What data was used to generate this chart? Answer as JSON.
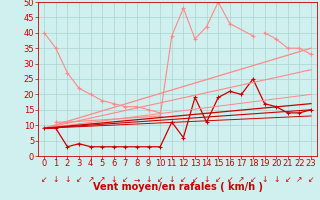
{
  "bg_color": "#cff0ee",
  "grid_color": "#aad4d0",
  "xlabel": "Vent moyen/en rafales ( km/h )",
  "xlabel_color": "#cc0000",
  "xlabel_fontsize": 7,
  "tick_color": "#cc0000",
  "tick_fontsize": 6,
  "xlim": [
    -0.5,
    23.5
  ],
  "ylim": [
    0,
    50
  ],
  "yticks": [
    0,
    5,
    10,
    15,
    20,
    25,
    30,
    35,
    40,
    45,
    50
  ],
  "xticks": [
    0,
    1,
    2,
    3,
    4,
    5,
    6,
    7,
    8,
    9,
    10,
    11,
    12,
    13,
    14,
    15,
    16,
    17,
    18,
    19,
    20,
    21,
    22,
    23
  ],
  "series": [
    {
      "x": [
        0,
        1,
        2,
        3,
        4,
        5,
        6,
        7,
        8,
        9,
        10
      ],
      "y": [
        40,
        35,
        27,
        22,
        20,
        18,
        17,
        16,
        16,
        15,
        14
      ],
      "color": "#ff8888",
      "marker": "+",
      "markersize": 3,
      "linewidth": 0.8
    },
    {
      "x": [
        1,
        2,
        10,
        11,
        12,
        13,
        14,
        15,
        16,
        18
      ],
      "y": [
        11,
        11,
        13,
        39,
        48,
        38,
        42,
        50,
        43,
        39
      ],
      "color": "#ff8888",
      "marker": "+",
      "markersize": 3,
      "linewidth": 0.8
    },
    {
      "x": [
        19,
        20,
        21,
        22,
        23
      ],
      "y": [
        40,
        38,
        35,
        35,
        33
      ],
      "color": "#ff8888",
      "marker": "+",
      "markersize": 3,
      "linewidth": 0.8
    },
    {
      "x": [
        0,
        1,
        2,
        3,
        4,
        5,
        6,
        7,
        8,
        9,
        10,
        11,
        12,
        13,
        14,
        15,
        16,
        17,
        18,
        19,
        20,
        21,
        22,
        23
      ],
      "y": [
        9,
        9,
        3,
        4,
        3,
        3,
        3,
        3,
        3,
        3,
        3,
        11,
        6,
        19,
        11,
        19,
        21,
        20,
        25,
        17,
        16,
        14,
        14,
        15
      ],
      "color": "#cc0000",
      "marker": "+",
      "markersize": 3,
      "linewidth": 0.9
    },
    {
      "x": [
        0,
        23
      ],
      "y": [
        9,
        35
      ],
      "color": "#ff8888",
      "marker": null,
      "markersize": 0,
      "linewidth": 0.9
    },
    {
      "x": [
        0,
        23
      ],
      "y": [
        9,
        28
      ],
      "color": "#ff8888",
      "marker": null,
      "markersize": 0,
      "linewidth": 0.8
    },
    {
      "x": [
        0,
        23
      ],
      "y": [
        9,
        20
      ],
      "color": "#ff8888",
      "marker": null,
      "markersize": 0,
      "linewidth": 0.7
    },
    {
      "x": [
        0,
        23
      ],
      "y": [
        9,
        17
      ],
      "color": "#cc0000",
      "marker": null,
      "markersize": 0,
      "linewidth": 0.9
    },
    {
      "x": [
        0,
        23
      ],
      "y": [
        9,
        15
      ],
      "color": "#cc0000",
      "marker": null,
      "markersize": 0,
      "linewidth": 0.8
    },
    {
      "x": [
        0,
        23
      ],
      "y": [
        9,
        13
      ],
      "color": "#cc0000",
      "marker": null,
      "markersize": 0,
      "linewidth": 0.7
    }
  ],
  "arrows": [
    "↙",
    "↓",
    "↓",
    "↙",
    "↗",
    "↗",
    "↓",
    "↙",
    "→",
    "↓",
    "↙",
    "↓",
    "↙",
    "↙",
    "↓",
    "↙",
    "↙",
    "↗",
    "↙",
    "↓",
    "↓",
    "↙",
    "↗",
    "↙"
  ]
}
